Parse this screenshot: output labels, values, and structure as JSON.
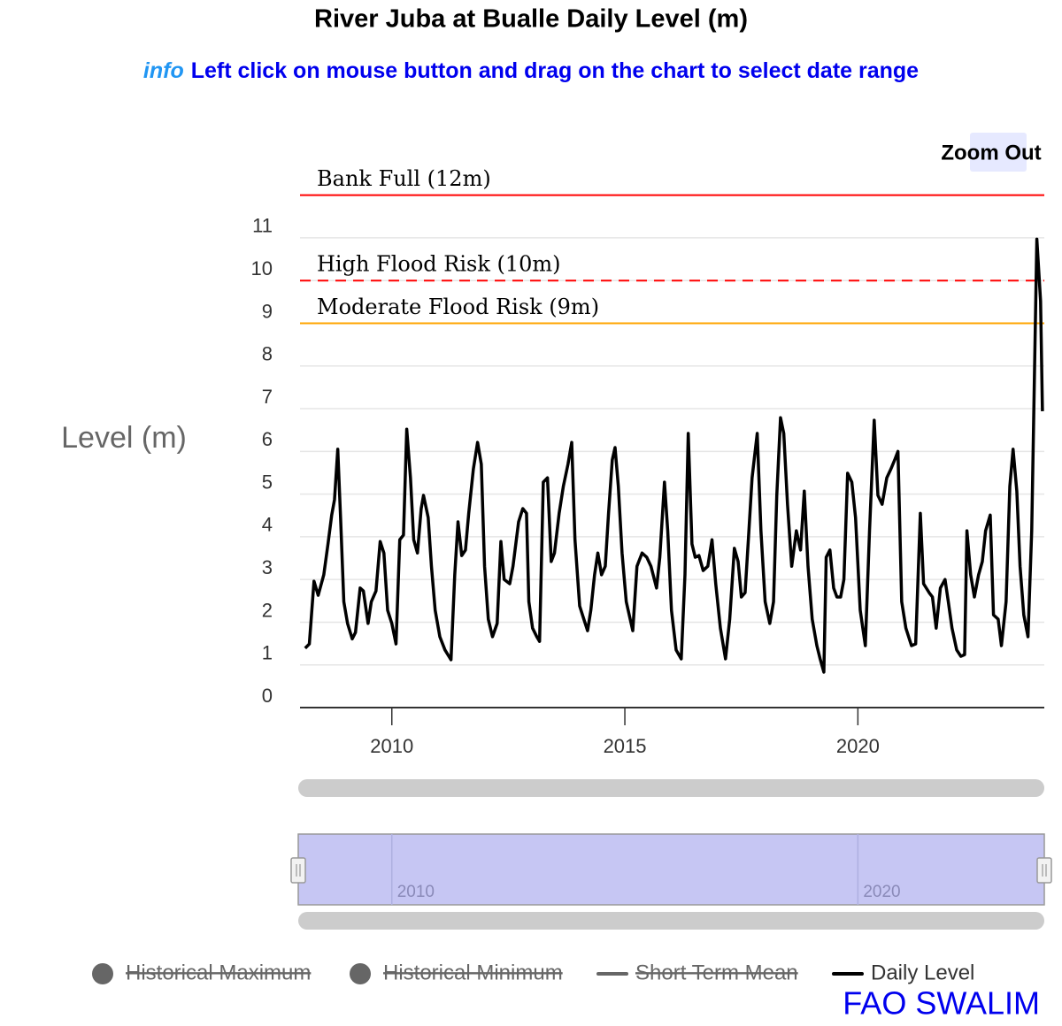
{
  "chart_data": {
    "type": "line",
    "title": "River Juba at Bualle Daily Level (m)",
    "subtitle_prefix": "info",
    "subtitle": "Left click on mouse button and drag on the chart to select date range",
    "y_axis_title": "Level (m)",
    "zoom_button": "Zoom Out",
    "credits": "FAO SWALIM",
    "grid": true,
    "xlim": [
      2008.03,
      2024.0
    ],
    "xticks": [
      2010,
      2015,
      2020
    ],
    "ylim": [
      0,
      12.2
    ],
    "yticks": [
      0,
      1,
      2,
      3,
      4,
      5,
      6,
      7,
      8,
      9,
      10,
      11
    ],
    "plot_lines": [
      {
        "label": "Bank Full (12m)",
        "value": 12,
        "color": "#ff0000",
        "dashed": false
      },
      {
        "label": "High Flood Risk (10m)",
        "value": 10,
        "color": "#ff0000",
        "dashed": true
      },
      {
        "label": "Moderate Flood Risk (9m)",
        "value": 9,
        "color": "#ffa500",
        "dashed": false
      }
    ],
    "navigator": {
      "xticks": [
        2010,
        2020
      ]
    },
    "x": [
      2008.14,
      2008.23,
      2008.33,
      2008.42,
      2008.54,
      2008.63,
      2008.71,
      2008.77,
      2008.84,
      2008.9,
      2008.97,
      2009.05,
      2009.15,
      2009.22,
      2009.32,
      2009.39,
      2009.49,
      2009.56,
      2009.66,
      2009.75,
      2009.83,
      2009.91,
      2010.0,
      2010.09,
      2010.17,
      2010.25,
      2010.32,
      2010.4,
      2010.47,
      2010.55,
      2010.63,
      2010.68,
      2010.78,
      2010.85,
      2010.93,
      2011.03,
      2011.14,
      2011.27,
      2011.35,
      2011.42,
      2011.5,
      2011.58,
      2011.65,
      2011.75,
      2011.84,
      2011.92,
      2011.99,
      2012.07,
      2012.16,
      2012.26,
      2012.34,
      2012.41,
      2012.53,
      2012.6,
      2012.72,
      2012.81,
      2012.89,
      2012.94,
      2013.02,
      2013.11,
      2013.17,
      2013.25,
      2013.34,
      2013.42,
      2013.49,
      2013.59,
      2013.68,
      2013.78,
      2013.86,
      2013.93,
      2014.03,
      2014.12,
      2014.2,
      2014.27,
      2014.35,
      2014.42,
      2014.5,
      2014.58,
      2014.65,
      2014.73,
      2014.79,
      2014.86,
      2014.94,
      2015.03,
      2015.17,
      2015.26,
      2015.37,
      2015.47,
      2015.56,
      2015.68,
      2015.75,
      2015.85,
      2015.92,
      2016.0,
      2016.1,
      2016.21,
      2016.29,
      2016.36,
      2016.44,
      2016.51,
      2016.59,
      2016.68,
      2016.78,
      2016.87,
      2016.95,
      2017.05,
      2017.16,
      2017.25,
      2017.35,
      2017.43,
      2017.5,
      2017.58,
      2017.65,
      2017.73,
      2017.84,
      2017.92,
      2018.01,
      2018.11,
      2018.19,
      2018.26,
      2018.34,
      2018.41,
      2018.49,
      2018.58,
      2018.68,
      2018.77,
      2018.85,
      2018.93,
      2019.02,
      2019.12,
      2019.19,
      2019.27,
      2019.32,
      2019.4,
      2019.48,
      2019.55,
      2019.63,
      2019.7,
      2019.78,
      2019.87,
      2019.95,
      2020.05,
      2020.16,
      2020.25,
      2020.35,
      2020.43,
      2020.52,
      2020.62,
      2020.71,
      2020.79,
      2020.86,
      2020.94,
      2021.03,
      2021.15,
      2021.24,
      2021.34,
      2021.41,
      2021.53,
      2021.6,
      2021.68,
      2021.77,
      2021.87,
      2021.94,
      2022.02,
      2022.12,
      2022.21,
      2022.29,
      2022.34,
      2022.42,
      2022.5,
      2022.59,
      2022.67,
      2022.74,
      2022.84,
      2022.91,
      2023.01,
      2023.08,
      2023.18,
      2023.26,
      2023.33,
      2023.41,
      2023.48,
      2023.56,
      2023.65,
      2023.73,
      2023.84,
      2023.92,
      2023.96
    ],
    "series": [
      {
        "name": "Historical Maximum",
        "color": "#666666",
        "symbol": "circle",
        "visible": false
      },
      {
        "name": "Historical Minimum",
        "color": "#666666",
        "symbol": "circle",
        "visible": false
      },
      {
        "name": "Short Term Mean",
        "color": "#666666",
        "symbol": "line",
        "visible": false
      },
      {
        "name": "Daily Level",
        "color": "#000000",
        "symbol": "line",
        "visible": true,
        "values": [
          1.39,
          1.49,
          2.96,
          2.63,
          3.11,
          3.83,
          4.51,
          4.87,
          6.05,
          4.45,
          2.48,
          1.97,
          1.61,
          1.76,
          2.8,
          2.73,
          1.97,
          2.48,
          2.73,
          3.89,
          3.62,
          2.28,
          1.97,
          1.49,
          3.93,
          4.04,
          6.52,
          5.38,
          3.93,
          3.62,
          4.66,
          4.97,
          4.45,
          3.31,
          2.28,
          1.66,
          1.35,
          1.12,
          3.11,
          4.35,
          3.56,
          3.69,
          4.55,
          5.59,
          6.21,
          5.7,
          3.31,
          2.07,
          1.66,
          1.97,
          3.89,
          3.0,
          2.9,
          3.31,
          4.35,
          4.66,
          4.55,
          2.48,
          1.86,
          1.66,
          1.55,
          5.28,
          5.38,
          3.42,
          3.62,
          4.55,
          5.18,
          5.7,
          6.21,
          3.93,
          2.38,
          2.07,
          1.8,
          2.28,
          3.11,
          3.62,
          3.11,
          3.31,
          4.55,
          5.8,
          6.09,
          5.18,
          3.62,
          2.48,
          1.8,
          3.31,
          3.62,
          3.52,
          3.31,
          2.8,
          3.52,
          5.28,
          4.14,
          2.28,
          1.35,
          1.14,
          3.11,
          6.42,
          3.83,
          3.52,
          3.56,
          3.21,
          3.31,
          3.93,
          2.9,
          1.86,
          1.14,
          2.07,
          3.73,
          3.42,
          2.59,
          2.69,
          3.93,
          5.38,
          6.42,
          4.14,
          2.48,
          1.97,
          2.48,
          4.97,
          6.79,
          6.42,
          4.76,
          3.31,
          4.14,
          3.69,
          5.07,
          3.31,
          2.07,
          1.45,
          1.14,
          0.83,
          3.52,
          3.69,
          2.8,
          2.59,
          2.59,
          3.0,
          5.49,
          5.28,
          4.45,
          2.28,
          1.45,
          4.14,
          6.73,
          4.97,
          4.76,
          5.38,
          5.59,
          5.8,
          6.0,
          2.48,
          1.86,
          1.45,
          1.49,
          4.55,
          2.9,
          2.69,
          2.59,
          1.86,
          2.8,
          3.0,
          2.48,
          1.86,
          1.35,
          1.2,
          1.24,
          4.14,
          3.11,
          2.59,
          3.11,
          3.42,
          4.14,
          4.51,
          2.17,
          2.07,
          1.45,
          2.48,
          5.18,
          6.05,
          5.07,
          3.31,
          2.17,
          1.66,
          4.14,
          10.97,
          9.52,
          6.94
        ]
      }
    ]
  }
}
